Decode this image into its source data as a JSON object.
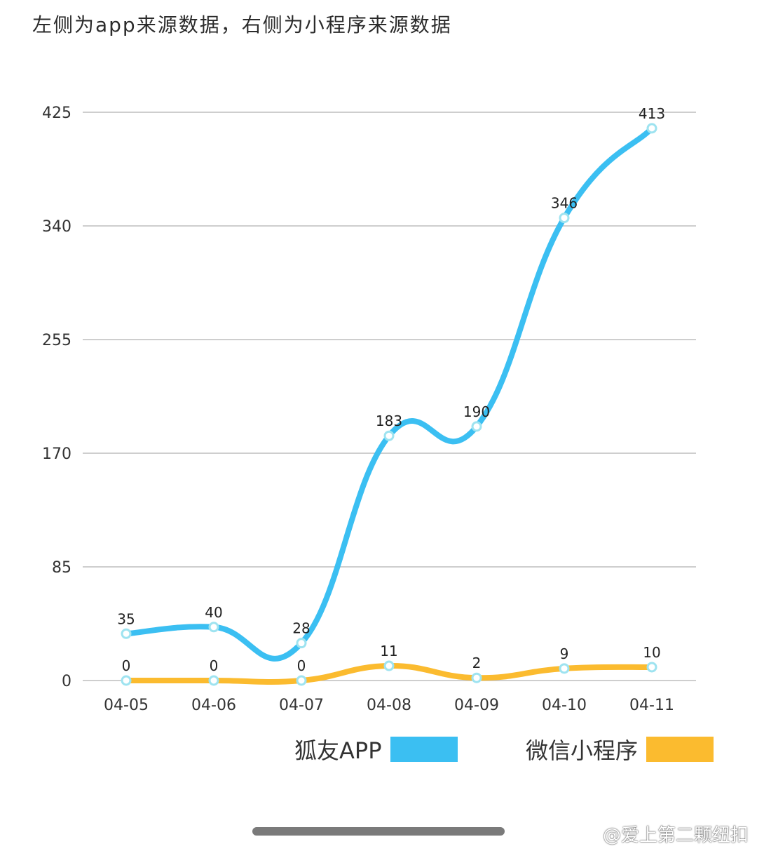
{
  "page": {
    "title": "左侧为app来源数据，右侧为小程序来源数据"
  },
  "legend": {
    "items": [
      {
        "label": "狐友APP",
        "color": "#3bbff2"
      },
      {
        "label": "微信小程序",
        "color": "#fbbb2f"
      }
    ]
  },
  "watermark": "@爱上第二颗纽扣",
  "colors": {
    "grid": "#bdbdbd",
    "marker_fill": "#ffffff",
    "marker_stroke": "#9ee3f0"
  },
  "chart_data": {
    "type": "line",
    "categories": [
      "04-05",
      "04-06",
      "04-07",
      "04-08",
      "04-09",
      "04-10",
      "04-11"
    ],
    "ylim": [
      0,
      425
    ],
    "yticks": [
      0,
      85,
      170,
      255,
      340,
      425
    ],
    "grid": true,
    "legend_position": "bottom-right",
    "smooth": true,
    "data_labels": true,
    "series": [
      {
        "name": "狐友APP",
        "color": "#3bbff2",
        "values": [
          35,
          40,
          28,
          183,
          190,
          346,
          413
        ]
      },
      {
        "name": "微信小程序",
        "color": "#fbbb2f",
        "values": [
          0,
          0,
          0,
          11,
          2,
          9,
          10
        ]
      }
    ]
  }
}
